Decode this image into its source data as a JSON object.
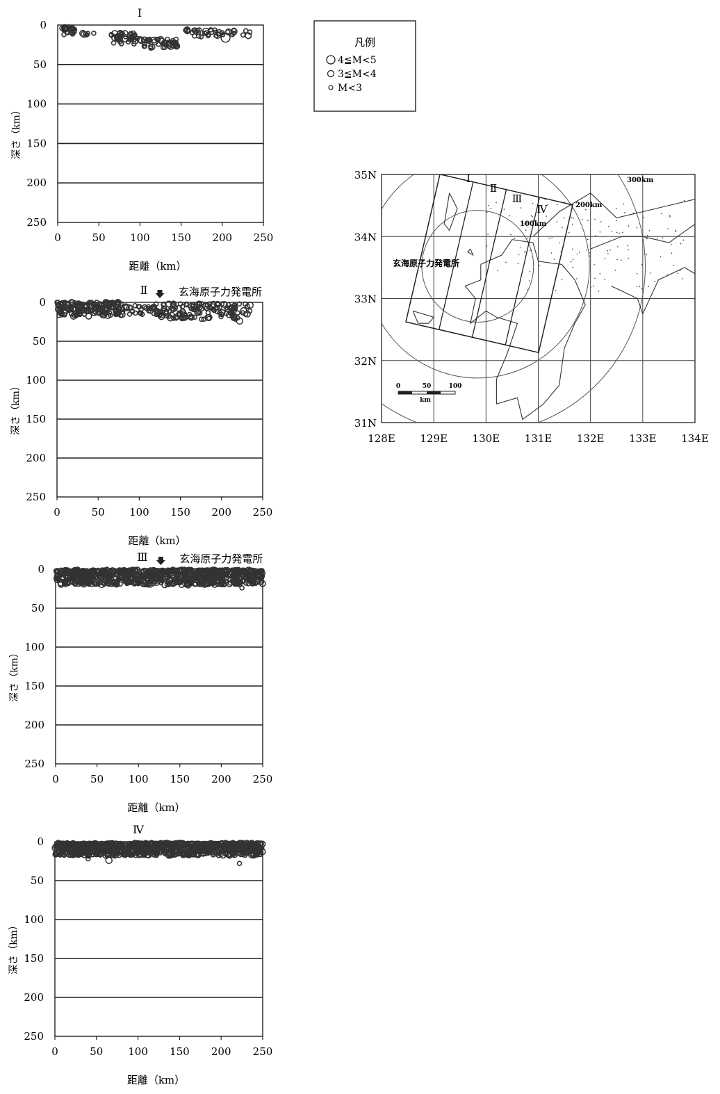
{
  "legend": {
    "title": "凡例",
    "items": [
      {
        "label": "4≦M<5",
        "symbol": "large-circle"
      },
      {
        "label": "3≦M<4",
        "symbol": "medium-circle"
      },
      {
        "label": "M<3",
        "symbol": "small-circle"
      }
    ]
  },
  "chart_data": [
    {
      "type": "scatter",
      "title": "Ⅰ",
      "annotation": "",
      "xlabel": "距離（km）",
      "ylabel": "深さ（km）",
      "xlim": [
        0,
        250
      ],
      "ylim": [
        250,
        0
      ],
      "xticks": [
        0,
        50,
        100,
        150,
        200,
        250
      ],
      "yticks": [
        0,
        50,
        100,
        150,
        200,
        250
      ],
      "grid": "horizontal",
      "clusters": [
        {
          "x_from": 5,
          "x_to": 20,
          "depth_from": 2,
          "depth_to": 14,
          "count": 22
        },
        {
          "x_from": 20,
          "x_to": 45,
          "depth_from": 10,
          "depth_to": 14,
          "count": 6
        },
        {
          "x_from": 65,
          "x_to": 100,
          "depth_from": 10,
          "depth_to": 24,
          "count": 40
        },
        {
          "x_from": 100,
          "x_to": 145,
          "depth_from": 18,
          "depth_to": 30,
          "count": 45
        },
        {
          "x_from": 155,
          "x_to": 195,
          "depth_from": 6,
          "depth_to": 16,
          "count": 25
        },
        {
          "x_from": 195,
          "x_to": 235,
          "depth_from": 6,
          "depth_to": 14,
          "count": 14
        }
      ],
      "notable_events": [
        {
          "x": 204,
          "depth": 16,
          "magnitude_class": "4≦M<5"
        },
        {
          "x": 180,
          "depth": 8,
          "magnitude_class": "3≦M<4"
        },
        {
          "x": 10,
          "depth": 4,
          "magnitude_class": "3≦M<4"
        }
      ]
    },
    {
      "type": "scatter",
      "title": "Ⅱ",
      "annotation": "玄海原子力発電所",
      "annotation_x": 125,
      "xlabel": "距離（km）",
      "ylabel": "深さ（km）",
      "xlim": [
        0,
        250
      ],
      "ylim": [
        250,
        0
      ],
      "xticks": [
        0,
        50,
        100,
        150,
        200,
        250
      ],
      "yticks": [
        0,
        50,
        100,
        150,
        200,
        250
      ],
      "grid": "horizontal",
      "clusters": [
        {
          "x_from": 0,
          "x_to": 80,
          "depth_from": 0,
          "depth_to": 18,
          "count": 180
        },
        {
          "x_from": 80,
          "x_to": 120,
          "depth_from": 4,
          "depth_to": 16,
          "count": 30
        },
        {
          "x_from": 120,
          "x_to": 235,
          "depth_from": 2,
          "depth_to": 22,
          "count": 140
        }
      ],
      "notable_events": [
        {
          "x": 222,
          "depth": 24,
          "magnitude_class": "3≦M<4"
        },
        {
          "x": 127,
          "depth": 18,
          "magnitude_class": "3≦M<4"
        }
      ]
    },
    {
      "type": "scatter",
      "title": "Ⅲ",
      "annotation": "玄海原子力発電所",
      "annotation_x": 127,
      "xlabel": "距離（km）",
      "ylabel": "深さ（km）",
      "xlim": [
        0,
        250
      ],
      "ylim": [
        250,
        0
      ],
      "xticks": [
        0,
        50,
        100,
        150,
        200,
        250
      ],
      "yticks": [
        0,
        50,
        100,
        150,
        200,
        250
      ],
      "grid": "horizontal",
      "clusters": [
        {
          "x_from": 0,
          "x_to": 250,
          "depth_from": 1,
          "depth_to": 20,
          "count": 900
        }
      ],
      "notable_events": [
        {
          "x": 225,
          "depth": 24,
          "magnitude_class": "M<3"
        },
        {
          "x": 160,
          "depth": 20,
          "magnitude_class": "3≦M<4"
        }
      ]
    },
    {
      "type": "scatter",
      "title": "Ⅳ",
      "annotation": "",
      "xlabel": "距離（km）",
      "ylabel": "深さ（km）",
      "xlim": [
        0,
        250
      ],
      "ylim": [
        250,
        0
      ],
      "xticks": [
        0,
        50,
        100,
        150,
        200,
        250
      ],
      "yticks": [
        0,
        50,
        100,
        150,
        200,
        250
      ],
      "grid": "horizontal",
      "clusters": [
        {
          "x_from": 0,
          "x_to": 250,
          "depth_from": 2,
          "depth_to": 18,
          "count": 1000
        }
      ],
      "notable_events": [
        {
          "x": 40,
          "depth": 22,
          "magnitude_class": "M<3"
        },
        {
          "x": 65,
          "depth": 24,
          "magnitude_class": "3≦M<4"
        },
        {
          "x": 222,
          "depth": 28,
          "magnitude_class": "M<3"
        }
      ]
    }
  ],
  "map": {
    "type": "map",
    "lat_labels": [
      "35N",
      "34N",
      "33N",
      "32N",
      "31N"
    ],
    "lon_labels": [
      "128E",
      "129E",
      "130E",
      "131E",
      "132E",
      "133E",
      "134E"
    ],
    "lat_range": [
      31,
      35
    ],
    "lon_range": [
      128,
      134
    ],
    "site_label": "玄海原子力発電所",
    "site": {
      "lon": 129.84,
      "lat": 33.52
    },
    "section_labels": [
      "Ⅰ",
      "Ⅱ",
      "Ⅲ",
      "Ⅳ"
    ],
    "range_rings": [
      "100km",
      "200km",
      "300km"
    ],
    "scale_bar": {
      "ticks": [
        "0",
        "50",
        "100"
      ],
      "unit": "km"
    }
  }
}
